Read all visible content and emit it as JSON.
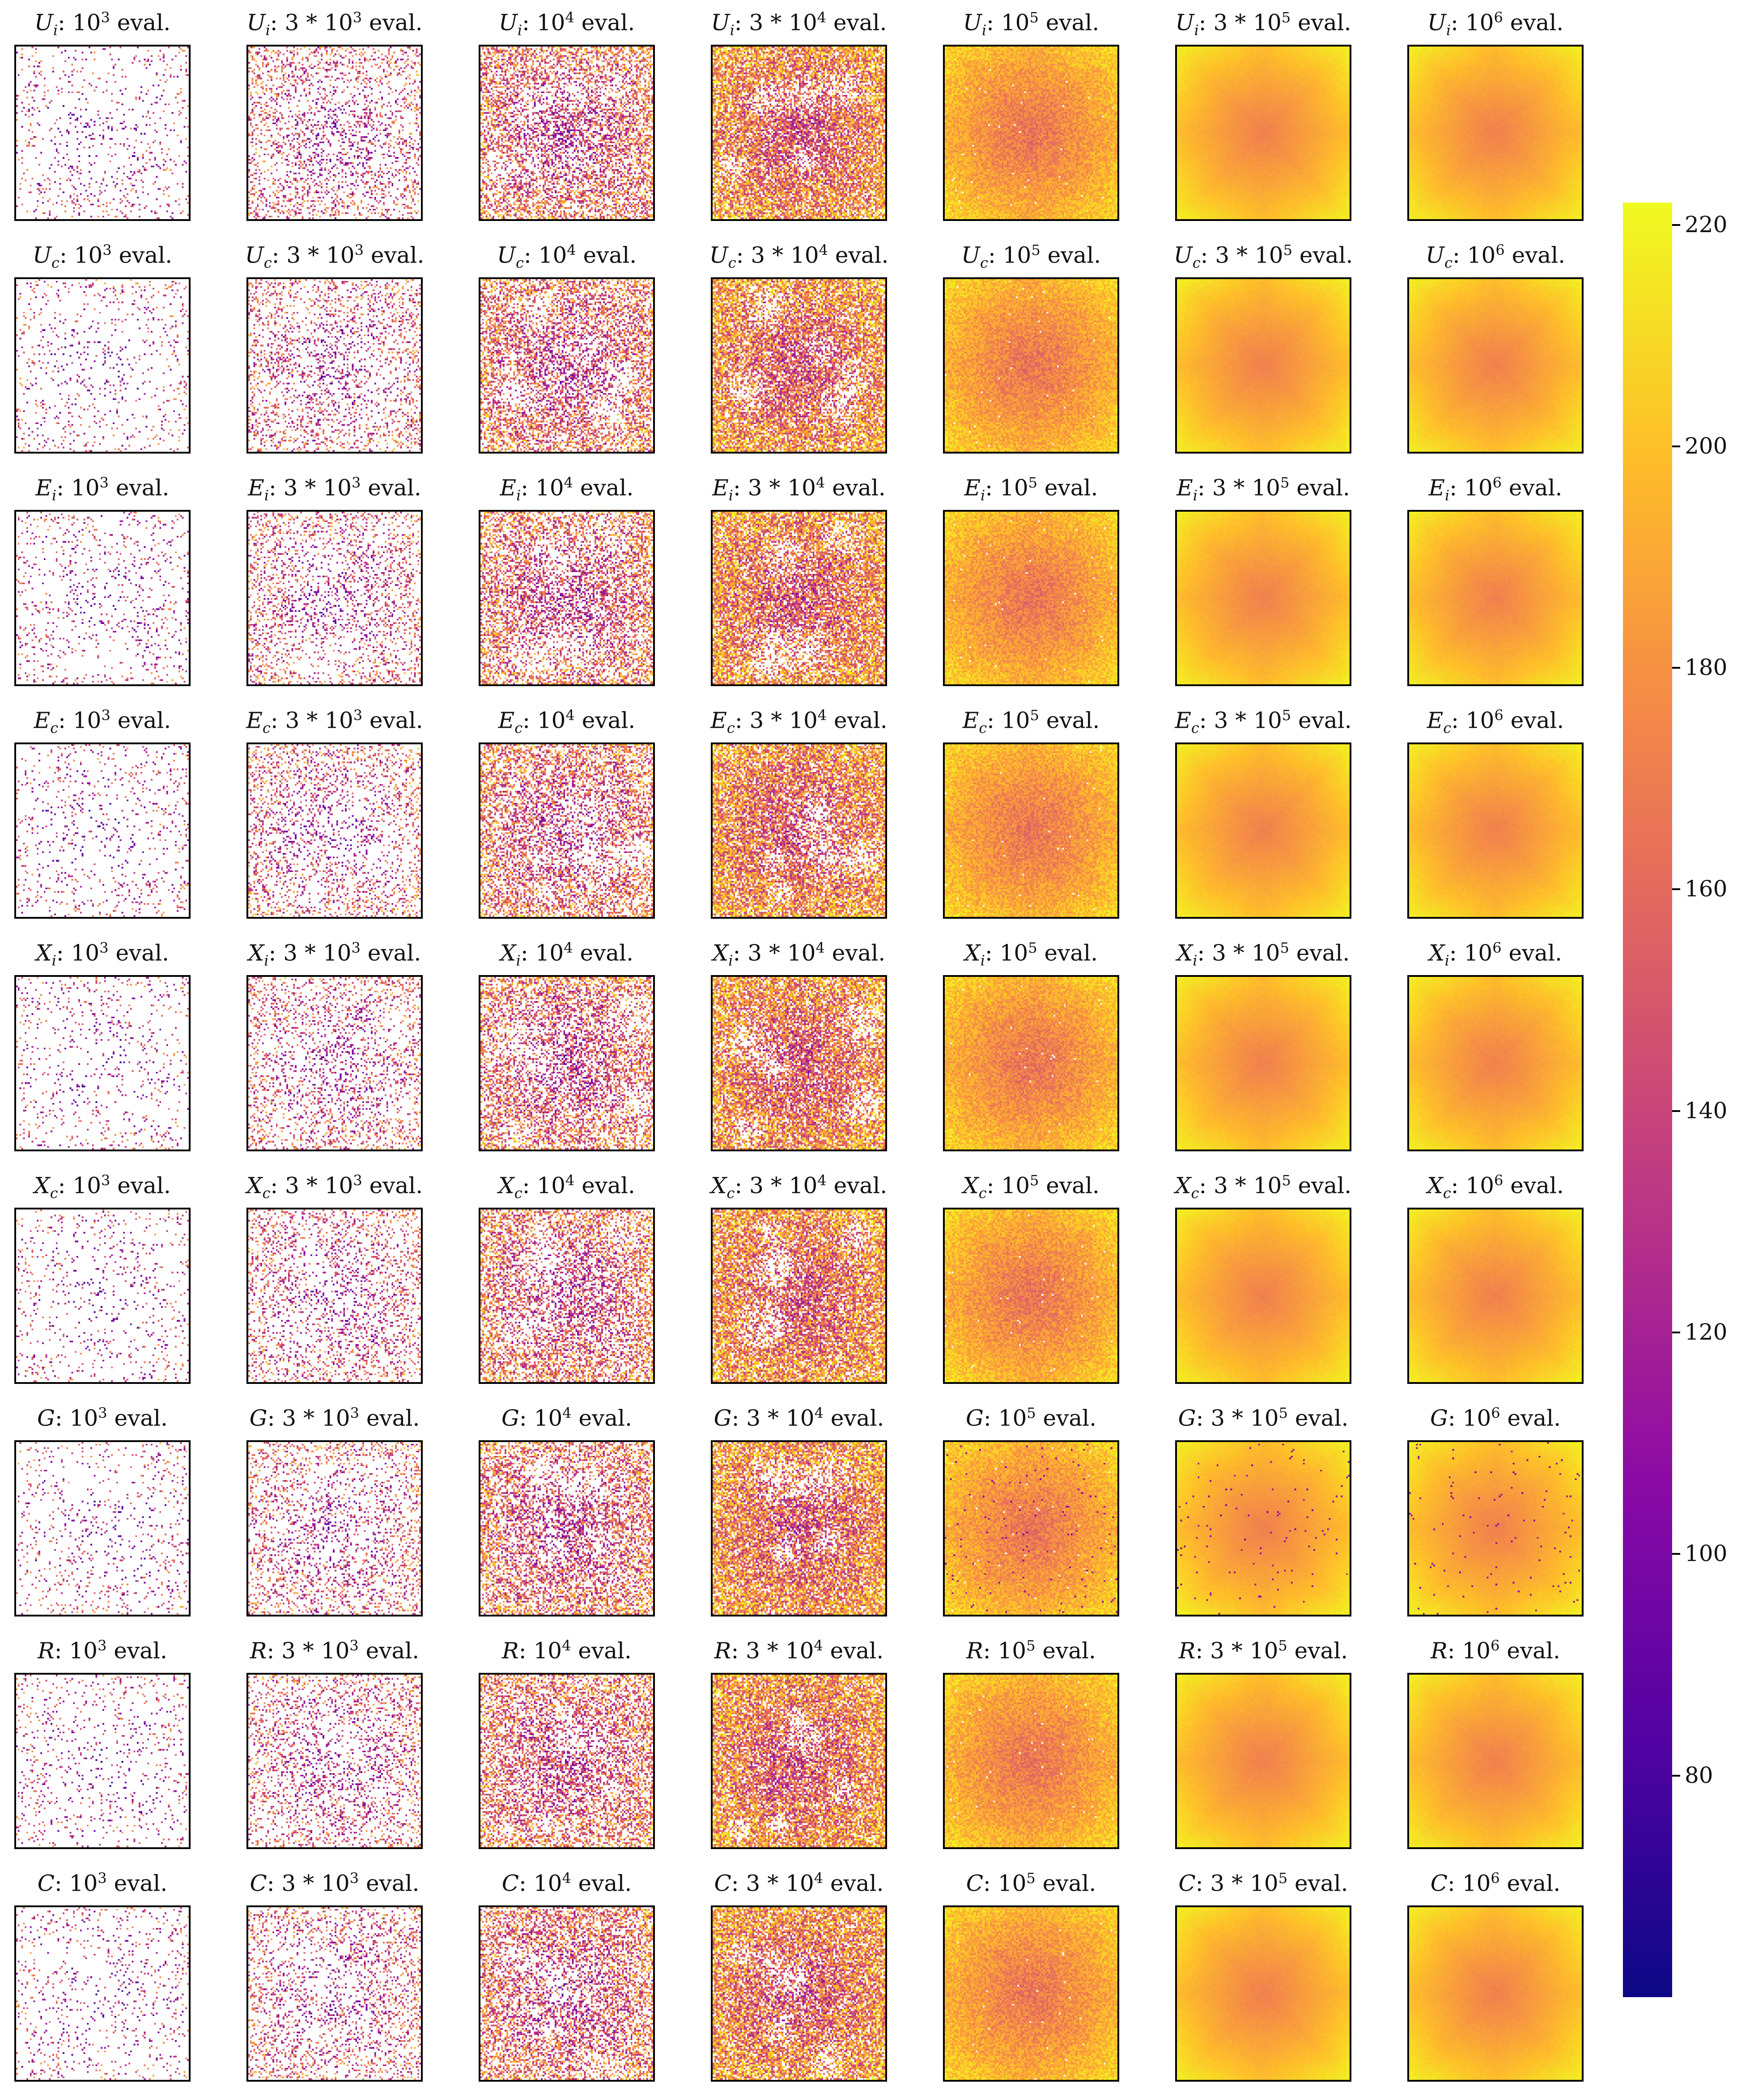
{
  "chart_data": {
    "type": "heatmap",
    "rows": [
      {
        "symbol": "U",
        "sub": "i"
      },
      {
        "symbol": "U",
        "sub": "c"
      },
      {
        "symbol": "E",
        "sub": "i"
      },
      {
        "symbol": "E",
        "sub": "c"
      },
      {
        "symbol": "X",
        "sub": "i"
      },
      {
        "symbol": "X",
        "sub": "c"
      },
      {
        "symbol": "G",
        "sub": ""
      },
      {
        "symbol": "R",
        "sub": ""
      },
      {
        "symbol": "C",
        "sub": ""
      }
    ],
    "columns": [
      {
        "coef": "",
        "exp": "3",
        "evaluations": 1000
      },
      {
        "coef": "3 * ",
        "exp": "3",
        "evaluations": 3000
      },
      {
        "coef": "",
        "exp": "4",
        "evaluations": 10000
      },
      {
        "coef": "3 * ",
        "exp": "4",
        "evaluations": 30000
      },
      {
        "coef": "",
        "exp": "5",
        "evaluations": 100000
      },
      {
        "coef": "3 * ",
        "exp": "5",
        "evaluations": 300000
      },
      {
        "coef": "",
        "exp": "6",
        "evaluations": 1000000
      }
    ],
    "title_separator": ":",
    "title_base": "10",
    "title_suffix": "eval.",
    "colormap": "plasma",
    "colorbar": {
      "range": [
        60,
        222
      ],
      "ticks": [
        80,
        100,
        120,
        140,
        160,
        180,
        200,
        220
      ]
    },
    "colors": [
      "#0d0887",
      "#5302a3",
      "#8b0aa5",
      "#b83289",
      "#db5c68",
      "#f48849",
      "#febd2a",
      "#f0f921"
    ]
  }
}
